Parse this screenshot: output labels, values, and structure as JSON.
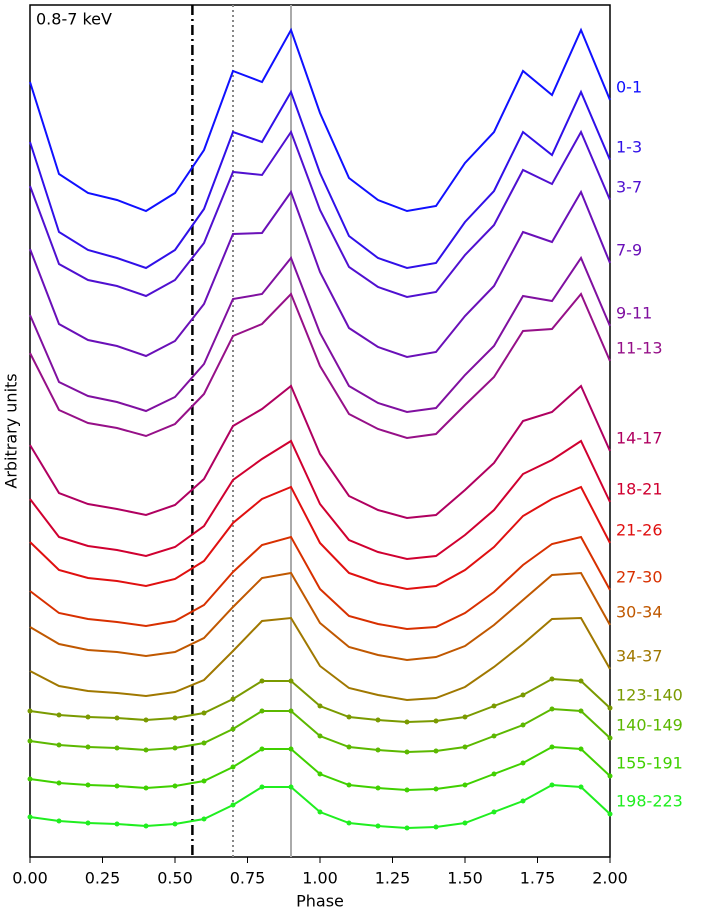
{
  "chart_data": {
    "type": "line",
    "annotation": "0.8-7 keV",
    "xlabel": "Phase",
    "ylabel": "Arbitrary units",
    "xlim": [
      0,
      2
    ],
    "ylim": [
      0,
      852
    ],
    "xticks": [
      {
        "value": 0,
        "label": "0.00"
      },
      {
        "value": 0.25,
        "label": "0.25"
      },
      {
        "value": 0.5,
        "label": "0.50"
      },
      {
        "value": 0.75,
        "label": "0.75"
      },
      {
        "value": 1,
        "label": "1.00"
      },
      {
        "value": 1.25,
        "label": "1.25"
      },
      {
        "value": 1.5,
        "label": "1.50"
      },
      {
        "value": 1.75,
        "label": "1.75"
      },
      {
        "value": 2,
        "label": "2.00"
      }
    ],
    "vlines": [
      {
        "x": 0.56,
        "style": "dashdot",
        "color": "#000000"
      },
      {
        "x": 0.7,
        "style": "dotted",
        "color": "#888888"
      },
      {
        "x": 0.9,
        "style": "solid",
        "color": "#aaaaaa"
      }
    ],
    "x": [
      0,
      0.1,
      0.2,
      0.3,
      0.4,
      0.5,
      0.6,
      0.7,
      0.8,
      0.9,
      1.0,
      1.1,
      1.2,
      1.3,
      1.4,
      1.5,
      1.6,
      1.7,
      1.8,
      1.9,
      2.0
    ],
    "series": [
      {
        "name": "0-1",
        "color": "#1010ff",
        "values": [
          775,
          683,
          664,
          657,
          646,
          664,
          707,
          786,
          775,
          827,
          744,
          679,
          657,
          646,
          651,
          694,
          725,
          786,
          762,
          827,
          757
        ]
      },
      {
        "name": "1-3",
        "color": "#3010e8",
        "values": [
          715,
          625,
          607,
          599,
          589,
          607,
          648,
          725,
          715,
          765,
          684,
          621,
          599,
          589,
          594,
          635,
          666,
          725,
          702,
          765,
          697
        ]
      },
      {
        "name": "3-7",
        "color": "#5010d0",
        "values": [
          671,
          593,
          577,
          571,
          561,
          577,
          614,
          685,
          682,
          725,
          647,
          590,
          570,
          560,
          565,
          602,
          632,
          687,
          673,
          725,
          657
        ]
      },
      {
        "name": "7-9",
        "color": "#6a10b8",
        "values": [
          608,
          533,
          517,
          511,
          501,
          516,
          553,
          623,
          624,
          665,
          585,
          529,
          510,
          500,
          505,
          541,
          571,
          625,
          615,
          665,
          594
        ]
      },
      {
        "name": "9-11",
        "color": "#8010a0",
        "values": [
          542,
          475,
          461,
          455,
          446,
          460,
          493,
          558,
          563,
          599,
          524,
          471,
          454,
          445,
          449,
          482,
          511,
          561,
          556,
          599,
          531
        ]
      },
      {
        "name": "11-13",
        "color": "#961088",
        "values": [
          504,
          447,
          434,
          429,
          421,
          433,
          463,
          521,
          533,
          563,
          491,
          443,
          428,
          419,
          423,
          452,
          480,
          526,
          528,
          563,
          496
        ]
      },
      {
        "name": "14-17",
        "color": "#b00060",
        "values": [
          412,
          364,
          353,
          348,
          342,
          352,
          378,
          431,
          448,
          471,
          403,
          361,
          347,
          339,
          342,
          367,
          394,
          436,
          445,
          471,
          406
        ]
      },
      {
        "name": "18-21",
        "color": "#d00030",
        "values": [
          358,
          320,
          311,
          307,
          301,
          310,
          331,
          377,
          398,
          416,
          353,
          317,
          305,
          298,
          301,
          322,
          347,
          383,
          397,
          416,
          355
        ]
      },
      {
        "name": "21-26",
        "color": "#e01010",
        "values": [
          315,
          287,
          279,
          276,
          271,
          278,
          296,
          334,
          358,
          370,
          314,
          284,
          274,
          268,
          271,
          287,
          310,
          341,
          358,
          370,
          314
        ]
      },
      {
        "name": "27-30",
        "color": "#d83000",
        "values": [
          266,
          244,
          238,
          235,
          231,
          236,
          252,
          285,
          312,
          320,
          268,
          241,
          233,
          228,
          230,
          244,
          265,
          292,
          313,
          320,
          267
        ]
      },
      {
        "name": "30-34",
        "color": "#c05800",
        "values": [
          230,
          213,
          207,
          205,
          201,
          205,
          219,
          250,
          279,
          284,
          234,
          210,
          202,
          197,
          200,
          211,
          232,
          257,
          282,
          284,
          232
        ]
      },
      {
        "name": "34-37",
        "color": "#a07800",
        "values": [
          186,
          171,
          166,
          164,
          161,
          165,
          177,
          206,
          236,
          239,
          191,
          169,
          162,
          157,
          159,
          170,
          190,
          213,
          238,
          239,
          188
        ]
      },
      {
        "name": "123-140",
        "color": "#7a9a00",
        "marker": "o",
        "values": [
          146,
          142,
          140,
          139,
          137,
          139,
          144,
          158,
          176,
          176,
          151,
          140,
          137,
          135,
          136,
          140,
          151,
          162,
          178,
          176,
          149
        ]
      },
      {
        "name": "140-149",
        "color": "#5cb800",
        "marker": "o",
        "values": [
          116,
          112,
          110,
          109,
          107,
          109,
          114,
          128,
          146,
          146,
          121,
          110,
          107,
          105,
          106,
          110,
          121,
          132,
          148,
          146,
          119
        ]
      },
      {
        "name": "155-191",
        "color": "#40d000",
        "marker": "o",
        "values": [
          78,
          74,
          72,
          71,
          69,
          71,
          76,
          90,
          108,
          108,
          83,
          72,
          69,
          67,
          68,
          72,
          83,
          94,
          110,
          108,
          81
        ]
      },
      {
        "name": "198-223",
        "color": "#20ee20",
        "marker": "o",
        "values": [
          40,
          36,
          34,
          33,
          31,
          33,
          38,
          52,
          70,
          70,
          45,
          34,
          31,
          29,
          30,
          34,
          45,
          56,
          72,
          70,
          43
        ]
      }
    ]
  }
}
